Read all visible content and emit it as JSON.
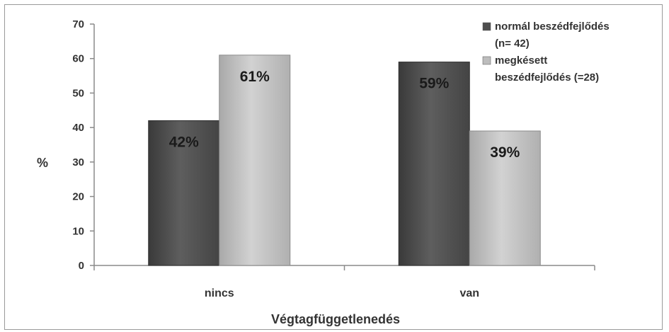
{
  "chart_data": {
    "type": "bar",
    "categories": [
      "nincs",
      "van"
    ],
    "series": [
      {
        "name": "normál beszédfejlődés (n= 42)",
        "legend_lines": [
          "normál beszédfejlődés",
          "(n= 42)"
        ],
        "values": [
          42,
          59
        ],
        "color": "#4e4e4e"
      },
      {
        "name": "megkésett beszédfejlődés (=28)",
        "legend_lines": [
          "megkésett",
          "beszédfejlődés (=28)"
        ],
        "values": [
          61,
          39
        ],
        "color": "#bdbdbd"
      }
    ],
    "data_labels": [
      [
        "42%",
        "59%"
      ],
      [
        "61%",
        "39%"
      ]
    ],
    "yticks": [
      0,
      10,
      20,
      30,
      40,
      50,
      60,
      70
    ],
    "ylim": [
      0,
      70
    ],
    "xlabel": "Végtagfüggetlenedés",
    "ylabel": "%",
    "legend_position": "top-right",
    "grid": false
  }
}
